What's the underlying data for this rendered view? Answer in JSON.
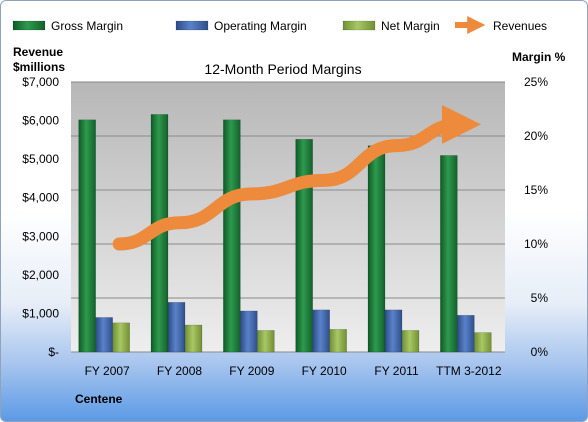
{
  "chart_data": {
    "type": "bar",
    "title": "12-Month Period Margins",
    "company": "Centene",
    "ylabel_left": [
      "Revenue",
      "$millions"
    ],
    "ylabel_right": "Margin %",
    "left_axis": {
      "ylim": [
        0,
        7000
      ],
      "ticks": [
        0,
        1000,
        2000,
        3000,
        4000,
        5000,
        6000,
        7000
      ],
      "tick_labels": [
        "$-",
        "$1,000",
        "$2,000",
        "$3,000",
        "$4,000",
        "$5,000",
        "$6,000",
        "$7,000"
      ]
    },
    "right_axis": {
      "ylim": [
        0,
        25
      ],
      "ticks": [
        0,
        5,
        10,
        15,
        20,
        25
      ],
      "tick_labels": [
        "0%",
        "5%",
        "10%",
        "15%",
        "20%",
        "25%"
      ]
    },
    "categories": [
      "FY 2007",
      "FY 2008",
      "FY 2009",
      "FY 2010",
      "FY 2011",
      "TTM 3-2012"
    ],
    "series": [
      {
        "name": "Gross Margin",
        "axis": "right",
        "color": "#1f7a3a",
        "values": [
          21.5,
          22.0,
          21.5,
          19.7,
          19.1,
          18.2
        ]
      },
      {
        "name": "Operating Margin",
        "axis": "right",
        "color": "#3f64a6",
        "values": [
          3.2,
          4.6,
          3.8,
          3.9,
          3.9,
          3.4
        ]
      },
      {
        "name": "Net Margin",
        "axis": "right",
        "color": "#8fb04a",
        "values": [
          2.7,
          2.5,
          2.0,
          2.1,
          2.0,
          1.8
        ]
      },
      {
        "name": "Revenues",
        "axis": "left",
        "type": "line",
        "color": "#ee8a3c",
        "values": [
          2800,
          3350,
          4100,
          4450,
          5350,
          5900
        ]
      }
    ],
    "legend_position": "top",
    "grid": true
  }
}
